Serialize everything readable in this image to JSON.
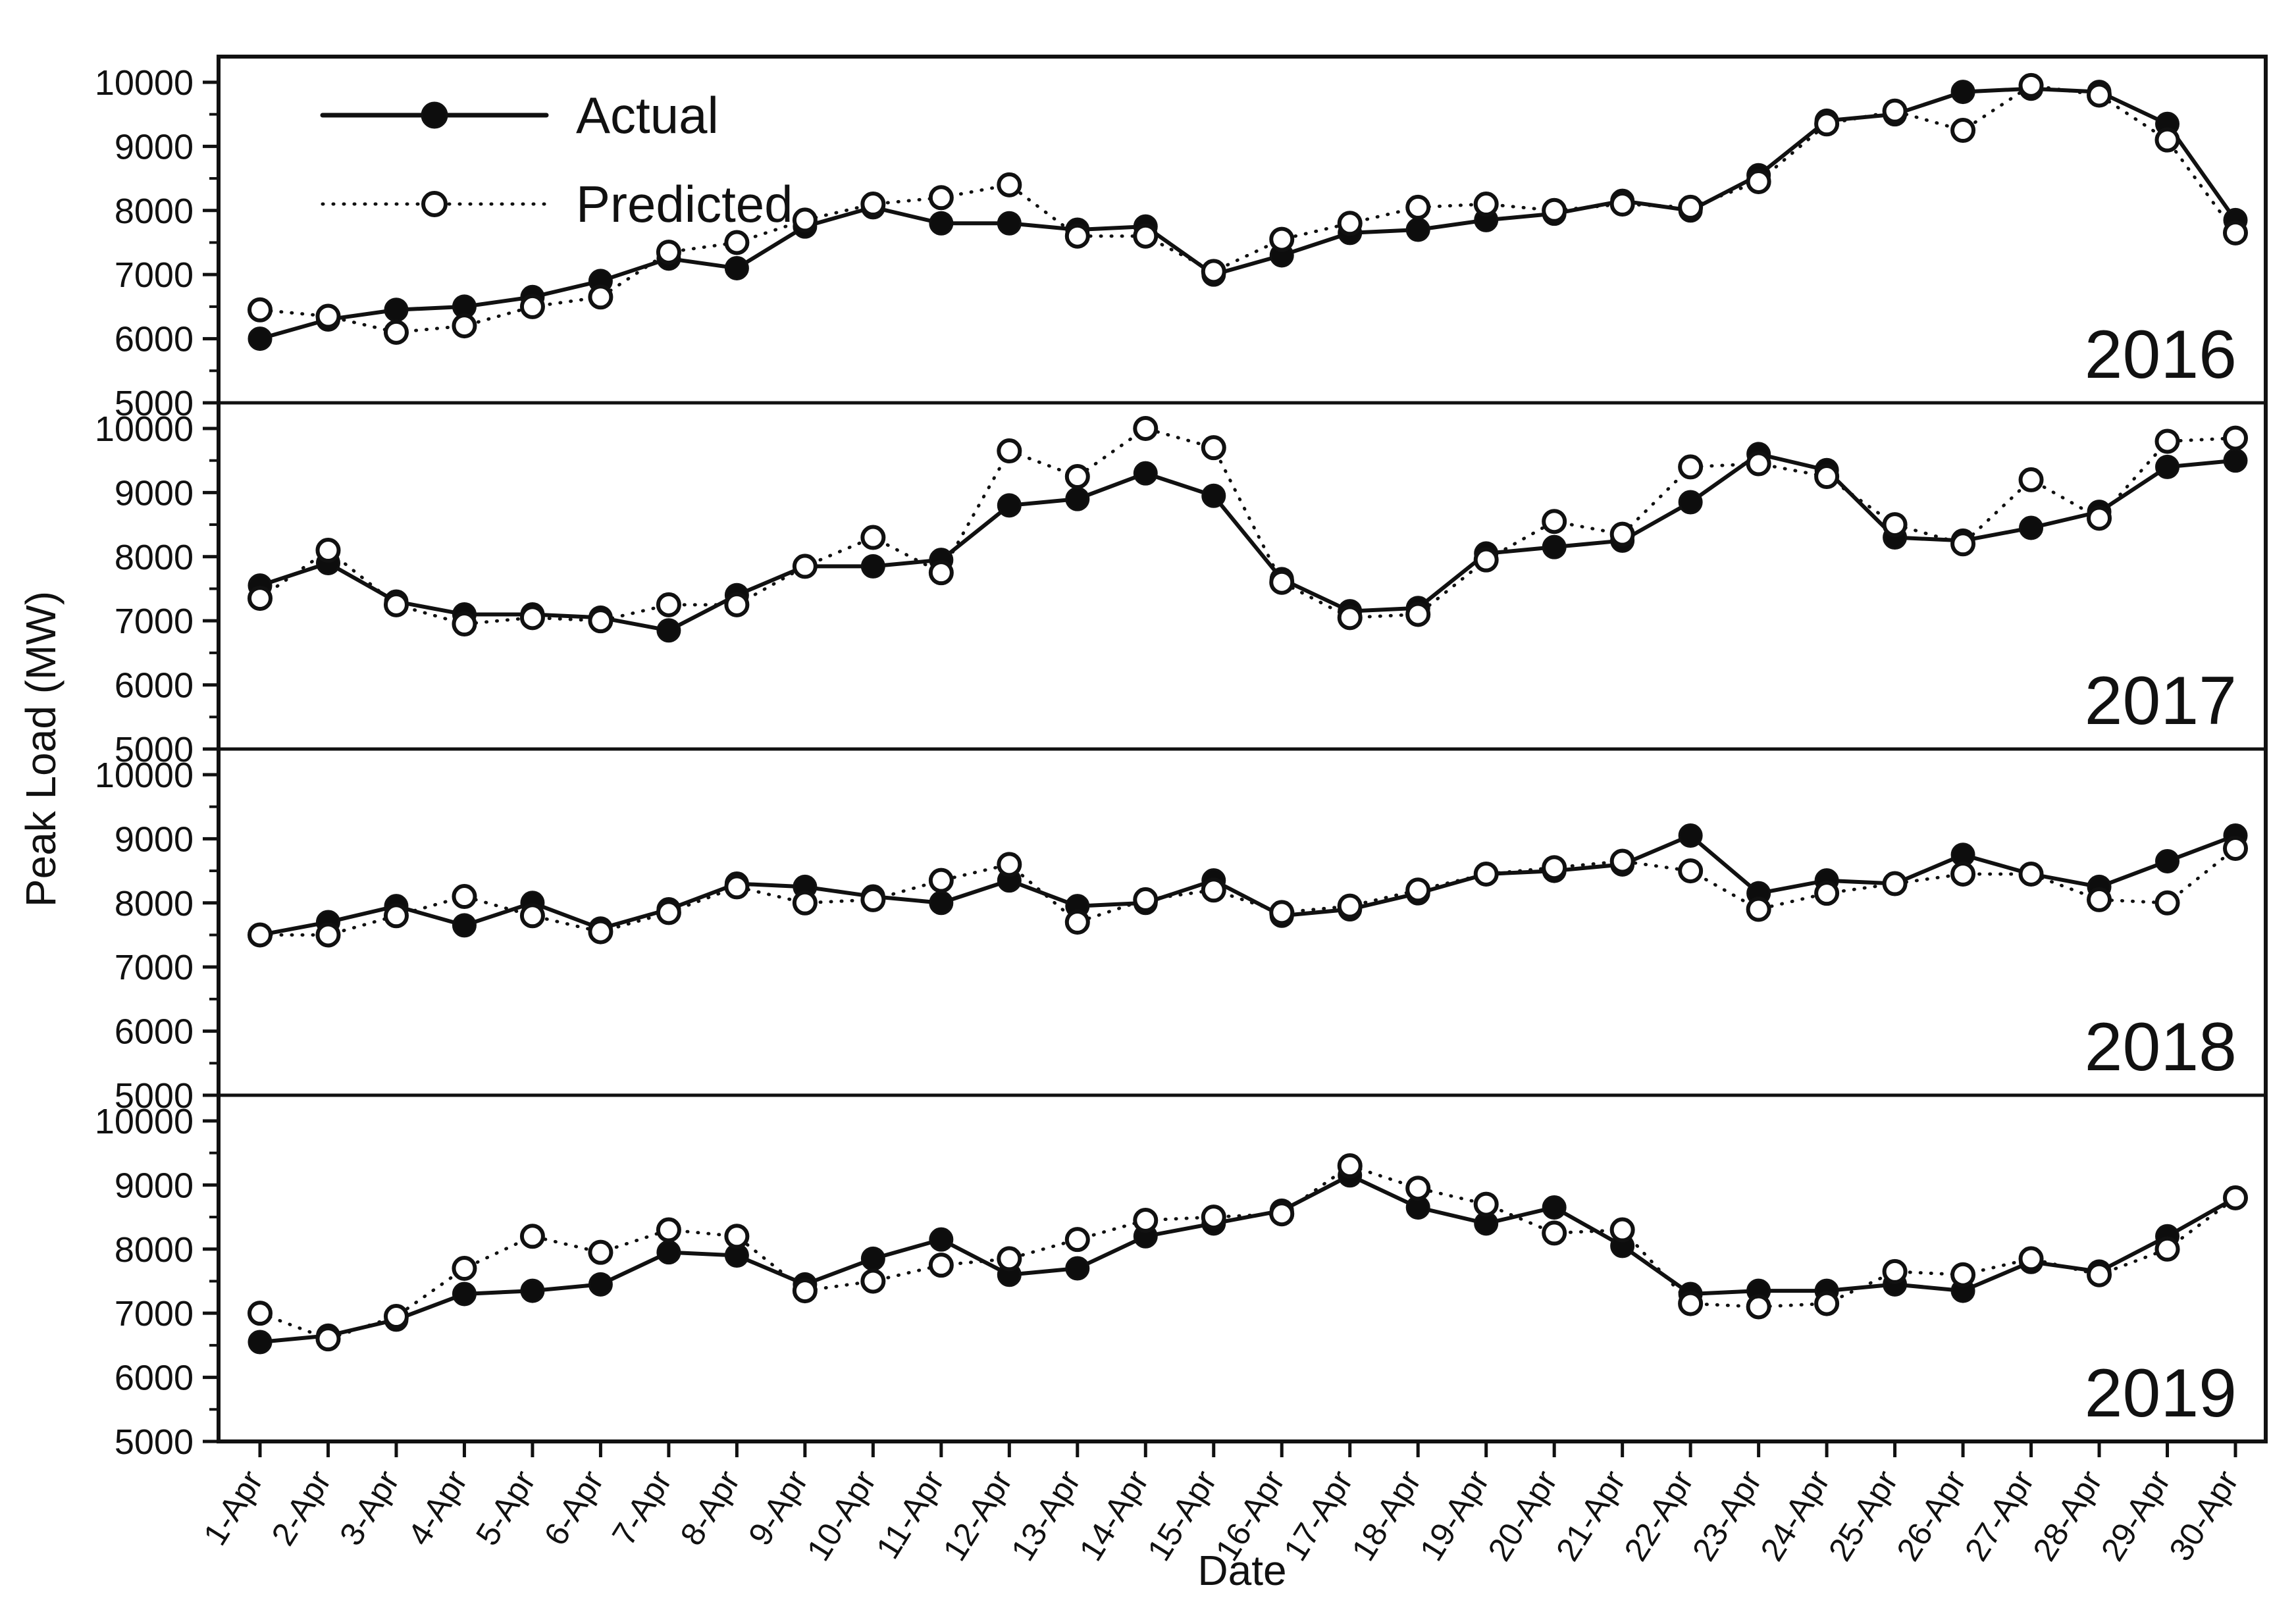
{
  "chart_data": {
    "type": "line",
    "title": "",
    "xlabel": "Date",
    "ylabel": "Peak Load (MW)",
    "ylim": [
      5000,
      10400
    ],
    "yticks": [
      5000,
      6000,
      7000,
      8000,
      9000,
      10000
    ],
    "ytick_minor_step": 500,
    "grid": "off",
    "legend_position": "top-left-first-panel",
    "colors": {
      "line": "#111111",
      "marker_fill": "#0d0d0d",
      "marker_open_fill": "#ffffff",
      "background": "#ffffff"
    },
    "categories": [
      "1-Apr",
      "2-Apr",
      "3-Apr",
      "4-Apr",
      "5-Apr",
      "6-Apr",
      "7-Apr",
      "8-Apr",
      "9-Apr",
      "10-Apr",
      "11-Apr",
      "12-Apr",
      "13-Apr",
      "14-Apr",
      "15-Apr",
      "16-Apr",
      "17-Apr",
      "18-Apr",
      "19-Apr",
      "20-Apr",
      "21-Apr",
      "22-Apr",
      "23-Apr",
      "24-Apr",
      "25-Apr",
      "26-Apr",
      "27-Apr",
      "28-Apr",
      "29-Apr",
      "30-Apr"
    ],
    "legend": [
      {
        "label": "Actual",
        "marker": "filled-circle",
        "line": "solid"
      },
      {
        "label": "Predicted",
        "marker": "open-circle",
        "line": "dotted"
      }
    ],
    "panels": [
      {
        "year": "2016",
        "series": [
          {
            "name": "Actual",
            "values": [
              6000,
              6300,
              6450,
              6500,
              6650,
              6900,
              7250,
              7100,
              7750,
              8050,
              7800,
              7800,
              7700,
              7750,
              7000,
              7300,
              7650,
              7700,
              7850,
              7950,
              8150,
              8000,
              8550,
              9400,
              9500,
              9850,
              9900,
              9850,
              9350,
              7850
            ]
          },
          {
            "name": "Predicted",
            "values": [
              6450,
              6350,
              6100,
              6200,
              6500,
              6650,
              7350,
              7500,
              7850,
              8100,
              8200,
              8400,
              7600,
              7600,
              7050,
              7550,
              7800,
              8050,
              8100,
              8000,
              8100,
              8050,
              8450,
              9350,
              9550,
              9250,
              9950,
              9800,
              9100,
              7650
            ]
          }
        ]
      },
      {
        "year": "2017",
        "series": [
          {
            "name": "Actual",
            "values": [
              7550,
              7900,
              7300,
              7100,
              7100,
              7050,
              6850,
              7400,
              7850,
              7850,
              7950,
              8800,
              8900,
              9300,
              8950,
              7650,
              7150,
              7200,
              8050,
              8150,
              8250,
              8850,
              9600,
              9350,
              8300,
              8250,
              8450,
              8700,
              9400,
              9500
            ]
          },
          {
            "name": "Predicted",
            "values": [
              7350,
              8100,
              7250,
              6950,
              7050,
              7000,
              7250,
              7250,
              7850,
              8300,
              7750,
              9650,
              9250,
              10000,
              9700,
              7600,
              7050,
              7100,
              7950,
              8550,
              8350,
              9400,
              9450,
              9250,
              8500,
              8200,
              9200,
              8600,
              9800,
              9850
            ]
          }
        ]
      },
      {
        "year": "2018",
        "series": [
          {
            "name": "Actual",
            "values": [
              7500,
              7700,
              7950,
              7650,
              8000,
              7600,
              7900,
              8300,
              8250,
              8100,
              8000,
              8350,
              7950,
              8000,
              8350,
              7800,
              7900,
              8150,
              8450,
              8500,
              8600,
              9050,
              8150,
              8350,
              8300,
              8750,
              8450,
              8250,
              8650,
              9050
            ]
          },
          {
            "name": "Predicted",
            "values": [
              7500,
              7500,
              7800,
              8100,
              7800,
              7550,
              7850,
              8250,
              8000,
              8050,
              8350,
              8600,
              7700,
              8050,
              8200,
              7850,
              7950,
              8200,
              8450,
              8550,
              8650,
              8500,
              7900,
              8150,
              8300,
              8450,
              8450,
              8050,
              8000,
              8850
            ]
          }
        ]
      },
      {
        "year": "2019",
        "series": [
          {
            "name": "Actual",
            "values": [
              6550,
              6650,
              6900,
              7300,
              7350,
              7450,
              7950,
              7900,
              7450,
              7850,
              8150,
              7600,
              7700,
              8200,
              8400,
              8600,
              9150,
              8650,
              8400,
              8650,
              8050,
              7300,
              7350,
              7350,
              7450,
              7350,
              7800,
              7650,
              8200,
              8800
            ]
          },
          {
            "name": "Predicted",
            "values": [
              7000,
              6600,
              6950,
              7700,
              8200,
              7950,
              8300,
              8200,
              7350,
              7500,
              7750,
              7850,
              8150,
              8450,
              8500,
              8550,
              9300,
              8950,
              8700,
              8250,
              8300,
              7150,
              7100,
              7150,
              7650,
              7600,
              7850,
              7600,
              8000,
              8800
            ]
          }
        ]
      }
    ]
  }
}
